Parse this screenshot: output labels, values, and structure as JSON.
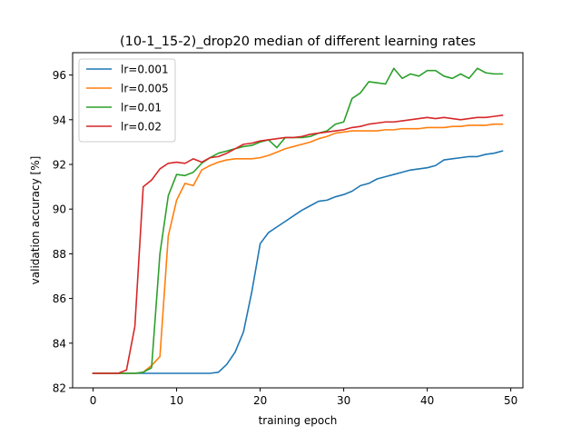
{
  "chart_data": {
    "type": "line",
    "title": "(10-1_15-2)_drop20    median of different learning rates",
    "xlabel": "training epoch",
    "ylabel": "validation accuracy [%]",
    "xlim": [
      -2.45,
      51.45
    ],
    "ylim": [
      82,
      97
    ],
    "xticks": [
      0,
      10,
      20,
      30,
      40,
      50
    ],
    "yticks": [
      82,
      84,
      86,
      88,
      90,
      92,
      94,
      96
    ],
    "grid": false,
    "legend_position": "top-left",
    "x": [
      0,
      1,
      2,
      3,
      4,
      5,
      6,
      7,
      8,
      9,
      10,
      11,
      12,
      13,
      14,
      15,
      16,
      17,
      18,
      19,
      20,
      21,
      22,
      23,
      24,
      25,
      26,
      27,
      28,
      29,
      30,
      31,
      32,
      33,
      34,
      35,
      36,
      37,
      38,
      39,
      40,
      41,
      42,
      43,
      44,
      45,
      46,
      47,
      48,
      49
    ],
    "series": [
      {
        "name": "lr=0.001",
        "color": "#1f77b4",
        "values": [
          82.65,
          82.65,
          82.65,
          82.65,
          82.65,
          82.65,
          82.65,
          82.65,
          82.65,
          82.65,
          82.65,
          82.65,
          82.65,
          82.65,
          82.65,
          82.7,
          83.05,
          83.6,
          84.5,
          86.3,
          88.45,
          88.95,
          89.2,
          89.45,
          89.7,
          89.95,
          90.15,
          90.35,
          90.4,
          90.55,
          90.65,
          90.8,
          91.05,
          91.15,
          91.35,
          91.45,
          91.55,
          91.65,
          91.75,
          91.8,
          91.85,
          91.95,
          92.2,
          92.25,
          92.3,
          92.35,
          92.35,
          92.45,
          92.5,
          92.6
        ]
      },
      {
        "name": "lr=0.005",
        "color": "#ff7f0e",
        "values": [
          82.65,
          82.65,
          82.65,
          82.65,
          82.65,
          82.65,
          82.7,
          83.0,
          83.4,
          88.8,
          90.4,
          91.15,
          91.05,
          91.75,
          91.95,
          92.1,
          92.2,
          92.25,
          92.25,
          92.25,
          92.3,
          92.4,
          92.55,
          92.7,
          92.8,
          92.9,
          93.0,
          93.15,
          93.25,
          93.4,
          93.45,
          93.5,
          93.5,
          93.5,
          93.5,
          93.55,
          93.55,
          93.6,
          93.6,
          93.6,
          93.65,
          93.65,
          93.65,
          93.7,
          93.7,
          93.75,
          93.75,
          93.75,
          93.8,
          93.8
        ]
      },
      {
        "name": "lr=0.01",
        "color": "#2ca02c",
        "values": [
          82.65,
          82.65,
          82.65,
          82.65,
          82.65,
          82.65,
          82.7,
          82.9,
          88.0,
          90.6,
          91.55,
          91.5,
          91.65,
          92.05,
          92.3,
          92.5,
          92.6,
          92.7,
          92.8,
          92.85,
          93.0,
          93.1,
          92.75,
          93.2,
          93.2,
          93.2,
          93.25,
          93.4,
          93.5,
          93.8,
          93.9,
          94.95,
          95.2,
          95.7,
          95.65,
          95.6,
          96.3,
          95.85,
          96.05,
          95.95,
          96.2,
          96.2,
          95.95,
          95.85,
          96.05,
          95.85,
          96.3,
          96.1,
          96.05,
          96.05
        ]
      },
      {
        "name": "lr=0.02",
        "color": "#d62728",
        "values": [
          82.65,
          82.65,
          82.65,
          82.65,
          82.8,
          84.75,
          91.0,
          91.3,
          91.8,
          92.05,
          92.1,
          92.05,
          92.25,
          92.1,
          92.3,
          92.35,
          92.5,
          92.7,
          92.9,
          92.95,
          93.05,
          93.1,
          93.15,
          93.2,
          93.2,
          93.25,
          93.35,
          93.4,
          93.45,
          93.5,
          93.55,
          93.65,
          93.7,
          93.8,
          93.85,
          93.9,
          93.9,
          93.95,
          94.0,
          94.05,
          94.1,
          94.05,
          94.1,
          94.05,
          94.0,
          94.05,
          94.1,
          94.1,
          94.15,
          94.2
        ]
      }
    ]
  }
}
